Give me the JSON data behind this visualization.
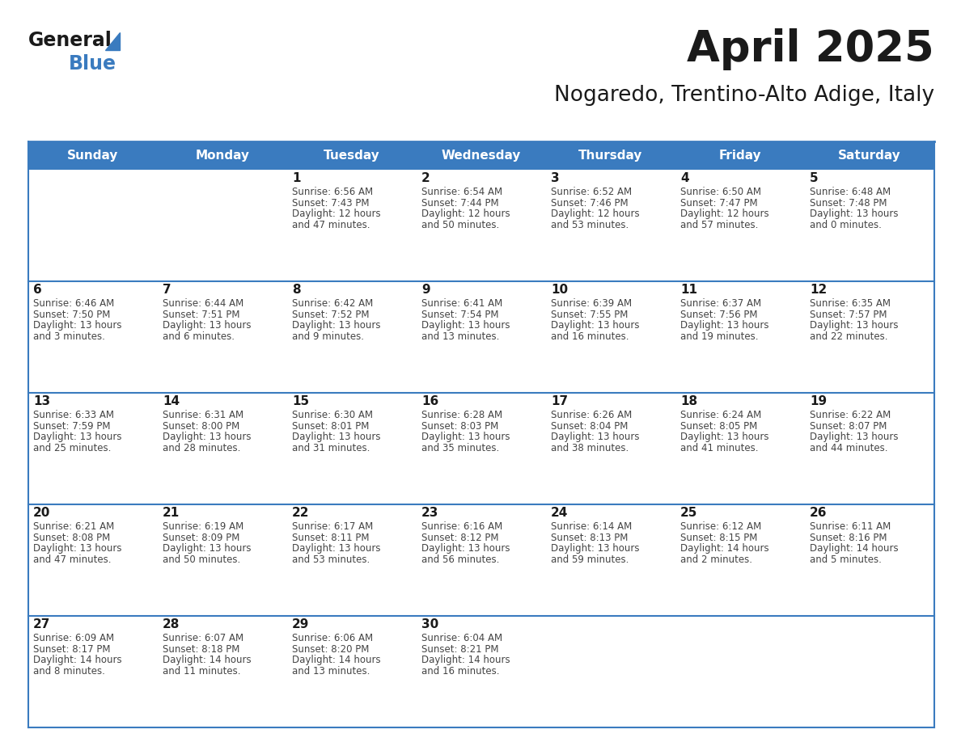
{
  "title": "April 2025",
  "subtitle": "Nogaredo, Trentino-Alto Adige, Italy",
  "days_of_week": [
    "Sunday",
    "Monday",
    "Tuesday",
    "Wednesday",
    "Thursday",
    "Friday",
    "Saturday"
  ],
  "header_bg_color": "#3a7bbf",
  "header_text_color": "#ffffff",
  "border_color": "#3a7bbf",
  "title_color": "#1a1a1a",
  "day_num_color": "#1a1a1a",
  "cell_text_color": "#444444",
  "logo_general_color": "#1a1a1a",
  "logo_blue_color": "#3a7bbf",
  "calendar_data": [
    {
      "day": 1,
      "col": 2,
      "row": 0,
      "sunrise": "6:56 AM",
      "sunset": "7:43 PM",
      "daylight_hours": 12,
      "daylight_minutes": 47
    },
    {
      "day": 2,
      "col": 3,
      "row": 0,
      "sunrise": "6:54 AM",
      "sunset": "7:44 PM",
      "daylight_hours": 12,
      "daylight_minutes": 50
    },
    {
      "day": 3,
      "col": 4,
      "row": 0,
      "sunrise": "6:52 AM",
      "sunset": "7:46 PM",
      "daylight_hours": 12,
      "daylight_minutes": 53
    },
    {
      "day": 4,
      "col": 5,
      "row": 0,
      "sunrise": "6:50 AM",
      "sunset": "7:47 PM",
      "daylight_hours": 12,
      "daylight_minutes": 57
    },
    {
      "day": 5,
      "col": 6,
      "row": 0,
      "sunrise": "6:48 AM",
      "sunset": "7:48 PM",
      "daylight_hours": 13,
      "daylight_minutes": 0
    },
    {
      "day": 6,
      "col": 0,
      "row": 1,
      "sunrise": "6:46 AM",
      "sunset": "7:50 PM",
      "daylight_hours": 13,
      "daylight_minutes": 3
    },
    {
      "day": 7,
      "col": 1,
      "row": 1,
      "sunrise": "6:44 AM",
      "sunset": "7:51 PM",
      "daylight_hours": 13,
      "daylight_minutes": 6
    },
    {
      "day": 8,
      "col": 2,
      "row": 1,
      "sunrise": "6:42 AM",
      "sunset": "7:52 PM",
      "daylight_hours": 13,
      "daylight_minutes": 9
    },
    {
      "day": 9,
      "col": 3,
      "row": 1,
      "sunrise": "6:41 AM",
      "sunset": "7:54 PM",
      "daylight_hours": 13,
      "daylight_minutes": 13
    },
    {
      "day": 10,
      "col": 4,
      "row": 1,
      "sunrise": "6:39 AM",
      "sunset": "7:55 PM",
      "daylight_hours": 13,
      "daylight_minutes": 16
    },
    {
      "day": 11,
      "col": 5,
      "row": 1,
      "sunrise": "6:37 AM",
      "sunset": "7:56 PM",
      "daylight_hours": 13,
      "daylight_minutes": 19
    },
    {
      "day": 12,
      "col": 6,
      "row": 1,
      "sunrise": "6:35 AM",
      "sunset": "7:57 PM",
      "daylight_hours": 13,
      "daylight_minutes": 22
    },
    {
      "day": 13,
      "col": 0,
      "row": 2,
      "sunrise": "6:33 AM",
      "sunset": "7:59 PM",
      "daylight_hours": 13,
      "daylight_minutes": 25
    },
    {
      "day": 14,
      "col": 1,
      "row": 2,
      "sunrise": "6:31 AM",
      "sunset": "8:00 PM",
      "daylight_hours": 13,
      "daylight_minutes": 28
    },
    {
      "day": 15,
      "col": 2,
      "row": 2,
      "sunrise": "6:30 AM",
      "sunset": "8:01 PM",
      "daylight_hours": 13,
      "daylight_minutes": 31
    },
    {
      "day": 16,
      "col": 3,
      "row": 2,
      "sunrise": "6:28 AM",
      "sunset": "8:03 PM",
      "daylight_hours": 13,
      "daylight_minutes": 35
    },
    {
      "day": 17,
      "col": 4,
      "row": 2,
      "sunrise": "6:26 AM",
      "sunset": "8:04 PM",
      "daylight_hours": 13,
      "daylight_minutes": 38
    },
    {
      "day": 18,
      "col": 5,
      "row": 2,
      "sunrise": "6:24 AM",
      "sunset": "8:05 PM",
      "daylight_hours": 13,
      "daylight_minutes": 41
    },
    {
      "day": 19,
      "col": 6,
      "row": 2,
      "sunrise": "6:22 AM",
      "sunset": "8:07 PM",
      "daylight_hours": 13,
      "daylight_minutes": 44
    },
    {
      "day": 20,
      "col": 0,
      "row": 3,
      "sunrise": "6:21 AM",
      "sunset": "8:08 PM",
      "daylight_hours": 13,
      "daylight_minutes": 47
    },
    {
      "day": 21,
      "col": 1,
      "row": 3,
      "sunrise": "6:19 AM",
      "sunset": "8:09 PM",
      "daylight_hours": 13,
      "daylight_minutes": 50
    },
    {
      "day": 22,
      "col": 2,
      "row": 3,
      "sunrise": "6:17 AM",
      "sunset": "8:11 PM",
      "daylight_hours": 13,
      "daylight_minutes": 53
    },
    {
      "day": 23,
      "col": 3,
      "row": 3,
      "sunrise": "6:16 AM",
      "sunset": "8:12 PM",
      "daylight_hours": 13,
      "daylight_minutes": 56
    },
    {
      "day": 24,
      "col": 4,
      "row": 3,
      "sunrise": "6:14 AM",
      "sunset": "8:13 PM",
      "daylight_hours": 13,
      "daylight_minutes": 59
    },
    {
      "day": 25,
      "col": 5,
      "row": 3,
      "sunrise": "6:12 AM",
      "sunset": "8:15 PM",
      "daylight_hours": 14,
      "daylight_minutes": 2
    },
    {
      "day": 26,
      "col": 6,
      "row": 3,
      "sunrise": "6:11 AM",
      "sunset": "8:16 PM",
      "daylight_hours": 14,
      "daylight_minutes": 5
    },
    {
      "day": 27,
      "col": 0,
      "row": 4,
      "sunrise": "6:09 AM",
      "sunset": "8:17 PM",
      "daylight_hours": 14,
      "daylight_minutes": 8
    },
    {
      "day": 28,
      "col": 1,
      "row": 4,
      "sunrise": "6:07 AM",
      "sunset": "8:18 PM",
      "daylight_hours": 14,
      "daylight_minutes": 11
    },
    {
      "day": 29,
      "col": 2,
      "row": 4,
      "sunrise": "6:06 AM",
      "sunset": "8:20 PM",
      "daylight_hours": 14,
      "daylight_minutes": 13
    },
    {
      "day": 30,
      "col": 3,
      "row": 4,
      "sunrise": "6:04 AM",
      "sunset": "8:21 PM",
      "daylight_hours": 14,
      "daylight_minutes": 16
    }
  ]
}
